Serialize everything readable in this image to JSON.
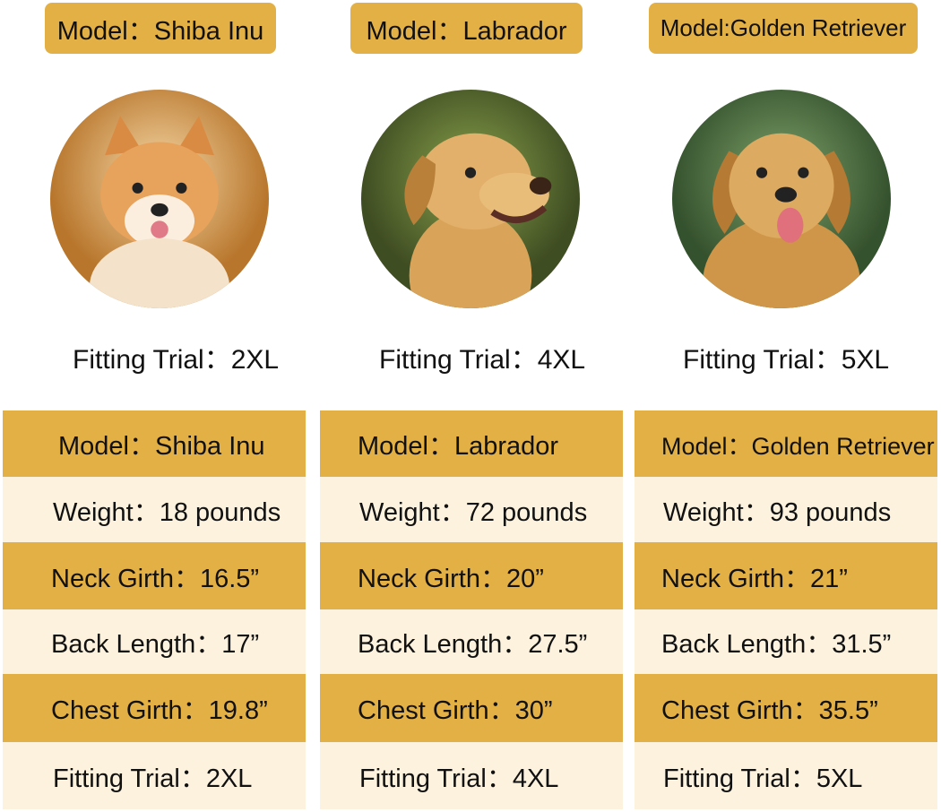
{
  "colors": {
    "gold": "#E3B046",
    "cream": "#FDF2DE"
  },
  "dogs": [
    {
      "badge": "Model：Shiba Inu",
      "photo": "shiba-inu-photo",
      "trial": "Fitting Trial：2XL",
      "rows": [
        "Model：Shiba Inu",
        "Weight：18 pounds",
        "Neck Girth：16.5”",
        "Back Length：17”",
        "Chest Girth：19.8”",
        "Fitting Trial：2XL"
      ]
    },
    {
      "badge": "Model：Labrador",
      "photo": "labrador-photo",
      "trial": "Fitting Trial：4XL",
      "rows": [
        "Model：Labrador",
        "Weight：72 pounds",
        "Neck Girth：20”",
        "Back Length：27.5”",
        "Chest Girth：30”",
        "Fitting Trial：4XL"
      ]
    },
    {
      "badge": "Model:Golden Retriever",
      "photo": "golden-retriever-photo",
      "trial": "Fitting Trial：5XL",
      "rows": [
        "Model：Golden Retriever",
        "Weight：93 pounds",
        "Neck Girth：21”",
        "Back Length：31.5”",
        "Chest Girth：35.5”",
        "Fitting Trial：5XL"
      ]
    }
  ]
}
